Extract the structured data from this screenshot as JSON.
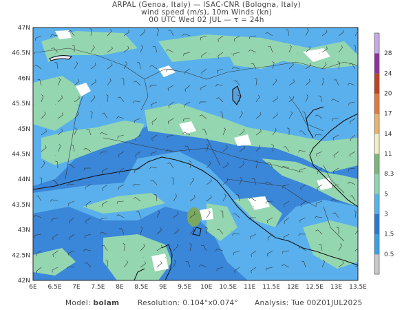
{
  "header": {
    "line1": "ARPAL (Genoa, Italy)  —  ISAC-CNR (Bologna, Italy)",
    "line2": "wind speed (m/s), 10m Winds (kn)",
    "line3": "00 UTC Wed 02 JUL  —  τ = 24h"
  },
  "axes": {
    "lat_labels": [
      "47N",
      "46.5N",
      "46N",
      "45.5N",
      "45N",
      "44.5N",
      "44N",
      "43.5N",
      "43N",
      "42.5N",
      "42N"
    ],
    "lon_labels": [
      "6E",
      "6.5E",
      "7E",
      "7.5E",
      "8E",
      "8.5E",
      "9E",
      "9.5E",
      "10E",
      "10.5E",
      "11E",
      "11.5E",
      "12E",
      "12.5E",
      "13E",
      "13.5E"
    ]
  },
  "colorbar": {
    "labels": [
      "0.5",
      "1.5",
      "3",
      "5",
      "8.3",
      "11",
      "14",
      "17",
      "20",
      "24",
      "28"
    ],
    "colors": [
      "#c8c8c8",
      "#3aa0e0",
      "#2a78d6",
      "#55b4ea",
      "#8fd4b4",
      "#7ab87a",
      "#f0f0c8",
      "#e8b470",
      "#e07a40",
      "#c04020",
      "#9030a0",
      "#c8a8e8"
    ]
  },
  "field_colors": {
    "sea_mid": "#3a86d8",
    "land_mid": "#5ab0ec",
    "strong": "#94d6b0",
    "white": "#ffffff",
    "patch": "#7aa860"
  },
  "footer": {
    "model_label": "Model:",
    "model_value": "bolam",
    "resolution_label": "Resolution:",
    "resolution_value": "0.104°x0.074°",
    "analysis_label": "Analysis:",
    "analysis_value": "Tue 00Z01JUL2025"
  }
}
